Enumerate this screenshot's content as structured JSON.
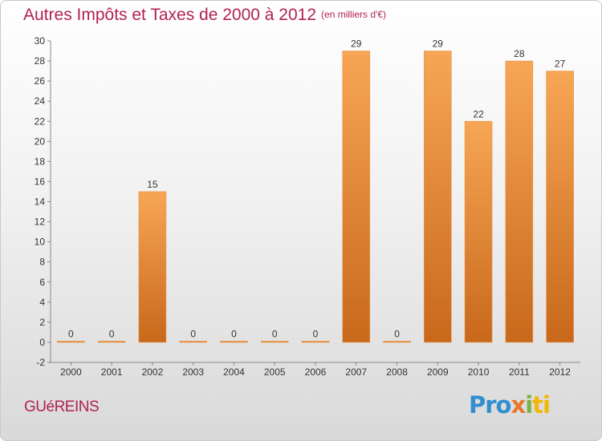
{
  "header": {
    "title": "Autres Impôts et Taxes de 2000 à 2012",
    "unit": "(en milliers d'€)"
  },
  "commune": "GUéREINS",
  "logo": {
    "parts": [
      "Pro",
      "x",
      "i",
      "ti"
    ],
    "text": "Proxiti"
  },
  "colors": {
    "bar_light": "#f7a656",
    "bar_dark": "#c8681a",
    "title": "#b22251"
  },
  "chart_data": {
    "type": "bar",
    "title": "Autres Impôts et Taxes de 2000 à 2012",
    "categories": [
      "2000",
      "2001",
      "2002",
      "2003",
      "2004",
      "2005",
      "2006",
      "2007",
      "2008",
      "2009",
      "2010",
      "2011",
      "2012"
    ],
    "values": [
      0,
      0,
      15,
      0,
      0,
      0,
      0,
      29,
      0,
      29,
      22,
      28,
      27
    ],
    "ylim": [
      -2,
      30
    ],
    "yticks": [
      -2,
      0,
      2,
      4,
      6,
      8,
      10,
      12,
      14,
      16,
      18,
      20,
      22,
      24,
      26,
      28,
      30
    ],
    "grid": false,
    "legend": "none"
  }
}
